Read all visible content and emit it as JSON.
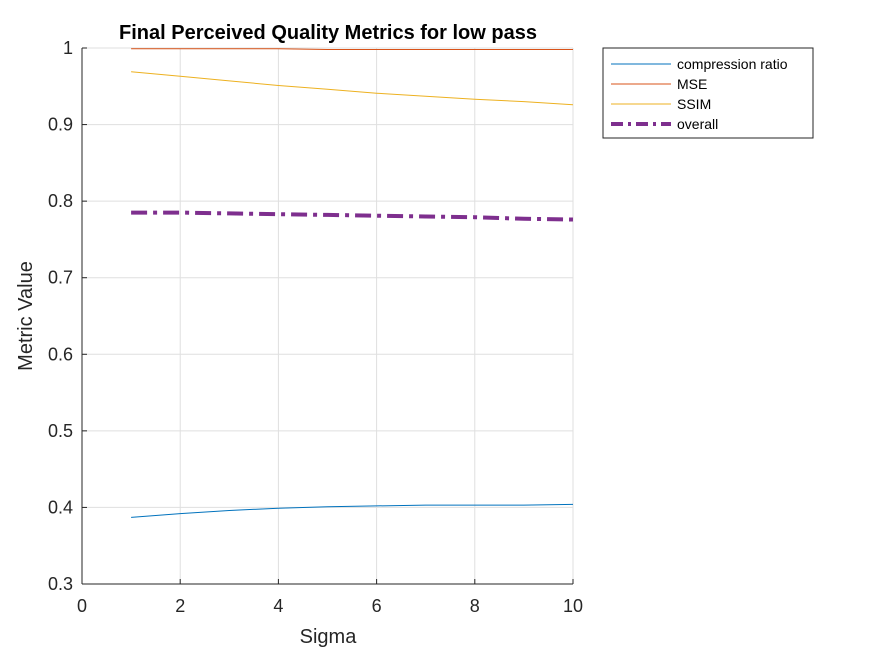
{
  "chart_data": {
    "type": "line",
    "title": "Final Perceived Quality Metrics for low pass",
    "xlabel": "Sigma",
    "ylabel": "Metric Value",
    "xlim": [
      0,
      10
    ],
    "ylim": [
      0.3,
      1
    ],
    "xticks": [
      0,
      2,
      4,
      6,
      8,
      10
    ],
    "yticks": [
      0.3,
      0.4,
      0.5,
      0.6,
      0.7,
      0.8,
      0.9,
      1
    ],
    "xtick_labels": [
      "0",
      "2",
      "4",
      "6",
      "8",
      "10"
    ],
    "ytick_labels": [
      "0.3",
      "0.4",
      "0.5",
      "0.6",
      "0.7",
      "0.8",
      "0.9",
      "1"
    ],
    "grid": true,
    "legend_position": "outside-top-right",
    "x": [
      1,
      2,
      3,
      4,
      5,
      6,
      7,
      8,
      9,
      10
    ],
    "series": [
      {
        "name": "compression ratio",
        "color": "#0072BD",
        "style": "solid",
        "width": "thin",
        "values": [
          0.387,
          0.392,
          0.396,
          0.399,
          0.401,
          0.402,
          0.403,
          0.403,
          0.403,
          0.404
        ]
      },
      {
        "name": "MSE",
        "color": "#D95319",
        "style": "solid",
        "width": "thin",
        "values": [
          0.999,
          0.999,
          0.999,
          0.999,
          0.998,
          0.998,
          0.998,
          0.998,
          0.998,
          0.998
        ]
      },
      {
        "name": "SSIM",
        "color": "#EDB120",
        "style": "solid",
        "width": "thin",
        "values": [
          0.969,
          0.963,
          0.957,
          0.951,
          0.946,
          0.941,
          0.937,
          0.933,
          0.93,
          0.926
        ]
      },
      {
        "name": "overall",
        "color": "#7E2F8E",
        "style": "dash-dot",
        "width": "thick",
        "values": [
          0.785,
          0.785,
          0.784,
          0.783,
          0.782,
          0.781,
          0.78,
          0.779,
          0.777,
          0.776
        ]
      }
    ]
  }
}
